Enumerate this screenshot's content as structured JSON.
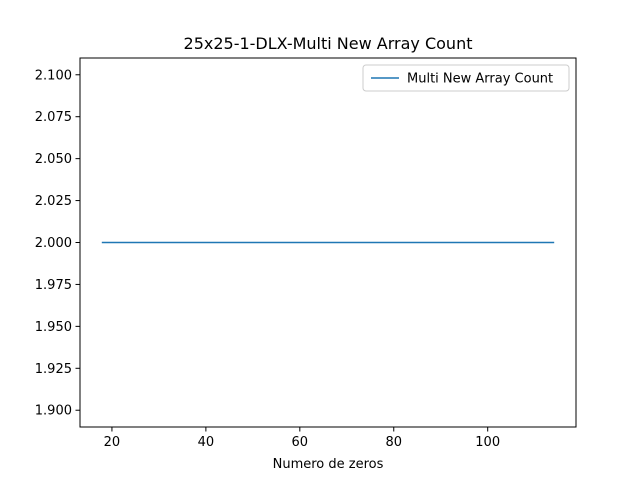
{
  "chart_data": {
    "type": "line",
    "title": "25x25-1-DLX-Multi New Array Count",
    "xlabel": "Numero de zeros",
    "ylabel": "",
    "xlim": [
      13.2,
      118.8
    ],
    "ylim": [
      1.89,
      2.11
    ],
    "xticks": [
      20,
      40,
      60,
      80,
      100
    ],
    "xtick_labels": [
      "20",
      "40",
      "60",
      "80",
      "100"
    ],
    "yticks": [
      1.9,
      1.925,
      1.95,
      1.975,
      2.0,
      2.025,
      2.05,
      2.075,
      2.1
    ],
    "ytick_labels": [
      "1.900",
      "1.925",
      "1.950",
      "1.975",
      "2.000",
      "2.025",
      "2.050",
      "2.075",
      "2.100"
    ],
    "grid": false,
    "legend_position": "top-right",
    "series": [
      {
        "name": "Multi New Array Count",
        "color": "#1f77b4",
        "x": [
          18,
          114
        ],
        "y": [
          2.0,
          2.0
        ]
      }
    ]
  }
}
